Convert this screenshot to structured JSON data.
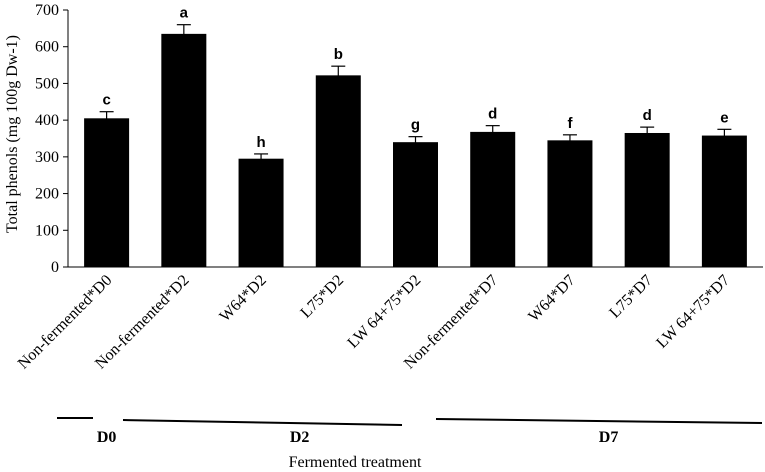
{
  "chart_data": {
    "type": "bar",
    "title": "",
    "ylabel": "Total phenols (mg 100g Dw-1)",
    "xlabel": "Fermented treatment",
    "ylim": [
      0,
      700
    ],
    "yticks": [
      0,
      100,
      200,
      300,
      400,
      500,
      600,
      700
    ],
    "grid": false,
    "legend": "none",
    "bar_color": "#000000",
    "categories": [
      "Non-fermented*D0",
      "Non-fermented*D2",
      "W64*D2",
      "L75*D2",
      "LW 64+75*D2",
      "Non-fermented*D7",
      "W64*D7",
      "L75*D7",
      "LW 64+75*D7"
    ],
    "values": [
      405,
      635,
      295,
      522,
      340,
      368,
      345,
      365,
      358
    ],
    "errors": [
      18,
      25,
      13,
      25,
      15,
      17,
      15,
      16,
      17
    ],
    "significance_letters": [
      "c",
      "a",
      "h",
      "b",
      "g",
      "d",
      "f",
      "d",
      "e"
    ],
    "groups": [
      {
        "label": "D0",
        "categories": [
          0
        ]
      },
      {
        "label": "D2",
        "categories": [
          1,
          2,
          3,
          4
        ]
      },
      {
        "label": "D7",
        "categories": [
          5,
          6,
          7,
          8
        ]
      }
    ]
  }
}
